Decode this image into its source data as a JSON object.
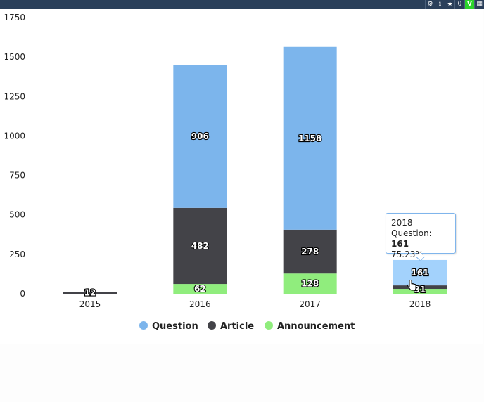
{
  "toolbar": {
    "settings_icon": "gear-icon",
    "info_icon": "info-icon",
    "star_icon": "star-icon",
    "count": "0",
    "check_label": "V",
    "grid_icon": "grid-icon"
  },
  "chart_data": {
    "type": "bar",
    "stacked": true,
    "categories": [
      "2015",
      "2016",
      "2017",
      "2018"
    ],
    "ylim": [
      0,
      1750
    ],
    "yticks": [
      "0",
      "250",
      "500",
      "750",
      "1000",
      "1250",
      "1500",
      "1750"
    ],
    "series": [
      {
        "name": "Announcement",
        "color": "#90ed7d",
        "values": [
          0,
          62,
          128,
          31
        ]
      },
      {
        "name": "Article",
        "color": "#434348",
        "values": [
          12,
          482,
          278,
          22
        ]
      },
      {
        "name": "Question",
        "color": "#7cb5ec",
        "values": [
          0,
          906,
          1158,
          161
        ]
      }
    ],
    "data_labels": {
      "Announcement": [
        "",
        "62",
        "128",
        "31"
      ],
      "Article": [
        "12",
        "482",
        "278",
        ""
      ],
      "Question": [
        "",
        "906",
        "1158",
        "161"
      ]
    },
    "legend": {
      "position": "bottom",
      "items": [
        "Question",
        "Article",
        "Announcement"
      ]
    },
    "hover_color": "#a3d2fc"
  },
  "tooltip": {
    "category": "2018",
    "series_label": "Question: ",
    "value": "161",
    "percent": "75.23%"
  }
}
